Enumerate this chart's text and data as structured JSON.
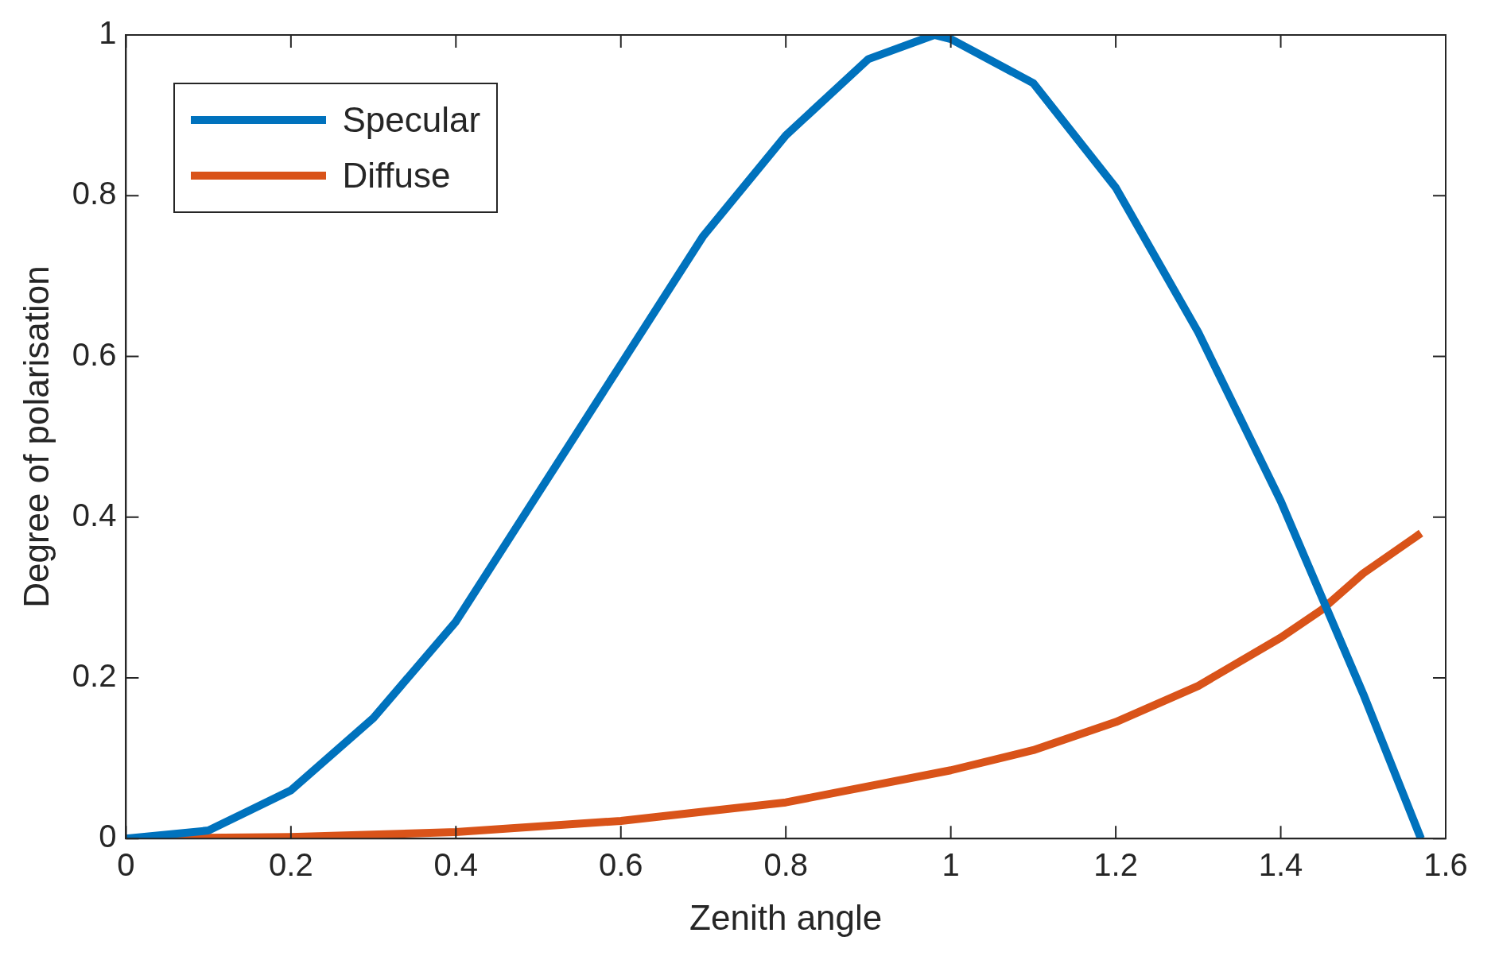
{
  "chart_data": {
    "type": "line",
    "xlabel": "Zenith angle",
    "ylabel": "Degree of polarisation",
    "xlim": [
      0,
      1.6
    ],
    "xticks": [
      0,
      0.2,
      0.4,
      0.6,
      0.8,
      1,
      1.2,
      1.4,
      1.6
    ],
    "ylim": [
      0,
      1
    ],
    "yticks": [
      0,
      0.2,
      0.4,
      0.6,
      0.8,
      1
    ],
    "grid": false,
    "legend": "top left",
    "marker": "none",
    "line_style": "solid",
    "series": [
      {
        "name": "Specular",
        "color": "#0072bd",
        "x": [
          0,
          0.1,
          0.2,
          0.3,
          0.4,
          0.5,
          0.6,
          0.7,
          0.8,
          0.9,
          0.98,
          1.0,
          1.1,
          1.2,
          1.3,
          1.4,
          1.45,
          1.5,
          1.57
        ],
        "values": [
          0,
          0.01,
          0.06,
          0.15,
          0.27,
          0.43,
          0.59,
          0.75,
          0.875,
          0.97,
          1.0,
          0.995,
          0.94,
          0.81,
          0.63,
          0.42,
          0.3,
          0.18,
          0
        ]
      },
      {
        "name": "Diffuse",
        "color": "#d95319",
        "x": [
          0,
          0.2,
          0.4,
          0.6,
          0.8,
          1.0,
          1.1,
          1.2,
          1.3,
          1.4,
          1.45,
          1.5,
          1.57
        ],
        "values": [
          0,
          0.002,
          0.008,
          0.022,
          0.045,
          0.085,
          0.11,
          0.145,
          0.19,
          0.25,
          0.285,
          0.33,
          0.38
        ]
      }
    ]
  }
}
